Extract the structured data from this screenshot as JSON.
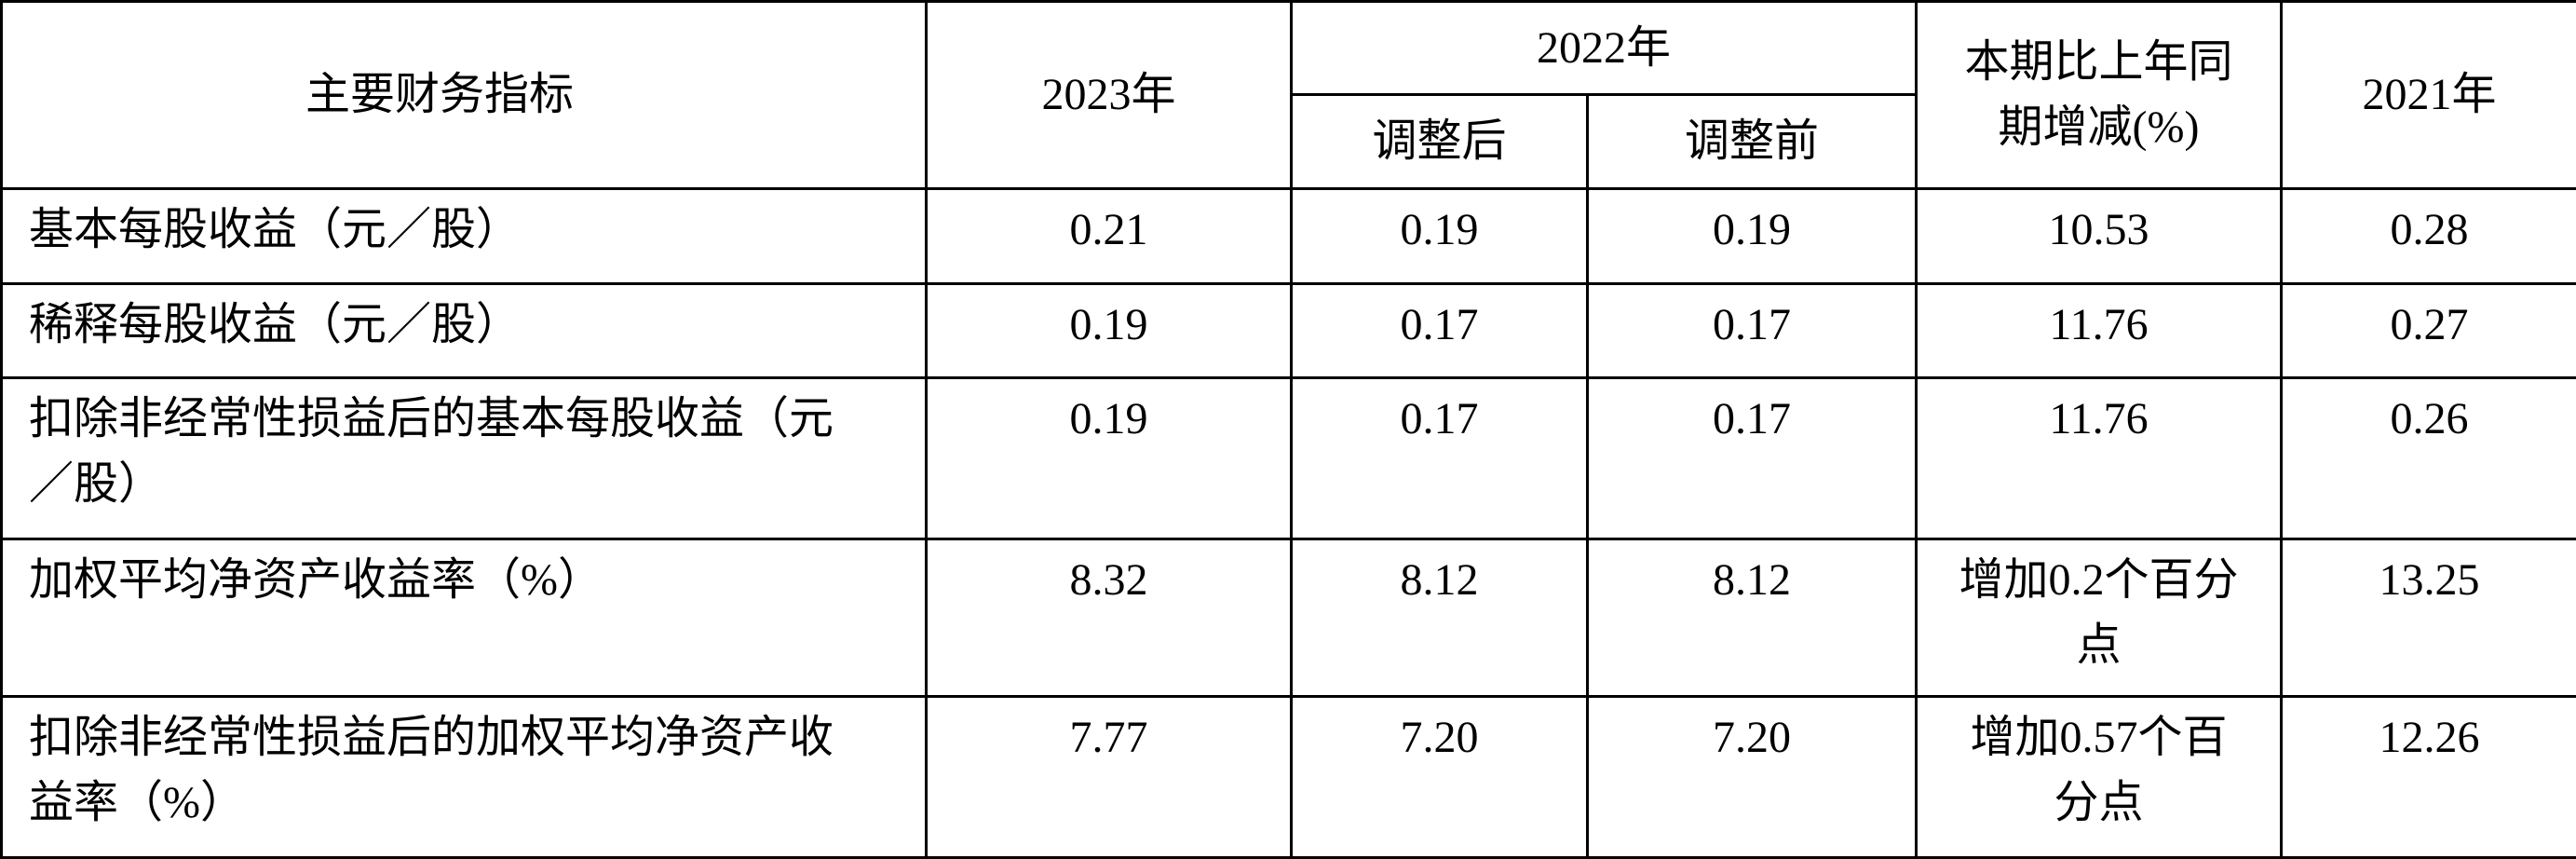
{
  "header": {
    "indicator": "主要财务指标",
    "year_2023": "2023年",
    "year_2022": "2022年",
    "adjusted": "调整后",
    "before_adjustment": "调整前",
    "change": "本期比上年同期增减(%)",
    "year_2021": "2021年"
  },
  "rows": [
    [
      "基本每股收益（元／股）",
      "0.21",
      "0.19",
      "0.19",
      "10.53",
      "0.28"
    ],
    [
      "稀释每股收益（元／股）",
      "0.19",
      "0.17",
      "0.17",
      "11.76",
      "0.27"
    ],
    [
      "扣除非经常性损益后的基本每股收益（元／股）",
      "0.19",
      "0.17",
      "0.17",
      "11.76",
      "0.26"
    ],
    [
      "加权平均净资产收益率（%）",
      "8.32",
      "8.12",
      "8.12",
      "增加0.2个百分点",
      "13.25"
    ],
    [
      "扣除非经常性损益后的加权平均净资产收益率（%）",
      "7.77",
      "7.20",
      "7.20",
      "增加0.57个百分点",
      "12.26"
    ]
  ]
}
